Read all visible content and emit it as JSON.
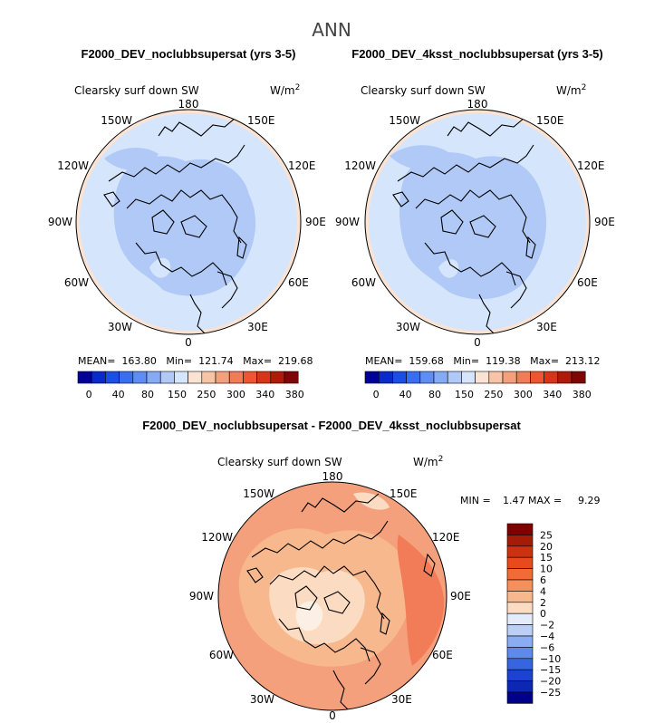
{
  "figure_title": "ANN",
  "panels": [
    {
      "title": "F2000_DEV_noclubbsupersat (yrs 3-5)",
      "variable": "Clearsky surf down SW",
      "units_base": "W/m",
      "units_exp": "2",
      "stats": "MEAN=  163.80   Min=  121.74   Max=  219.68"
    },
    {
      "title": "F2000_DEV_4ksst_noclubbsupersat (yrs 3-5)",
      "variable": "Clearsky surf down SW",
      "units_base": "W/m",
      "units_exp": "2",
      "stats": "MEAN=  159.68   Min=  119.38   Max=  213.12"
    }
  ],
  "diff_panel": {
    "title": "F2000_DEV_noclubbsupersat - F2000_DEV_4ksst_noclubbsupersat",
    "variable": "Clearsky surf down SW",
    "units_base": "W/m",
    "units_exp": "2",
    "min_label": "MIN =",
    "min_value": "1.47",
    "max_label": "MAX =",
    "max_value": "9.29"
  },
  "lon_labels": {
    "lon180": "180",
    "lon150E": "150E",
    "lon120E": "120E",
    "lon90E": "90E",
    "lon60E": "60E",
    "lon30E": "30E",
    "lon0": "0",
    "lon30W": "30W",
    "lon60W": "60W",
    "lon90W": "90W",
    "lon120W": "120W",
    "lon150W": "150W"
  },
  "colorbar_abs": {
    "colors": [
      "#000099",
      "#0a2acc",
      "#1b4ee6",
      "#3a6ef2",
      "#5f8df5",
      "#86abf5",
      "#b0c9f7",
      "#d5e5fb",
      "#fbe3d3",
      "#f7c4a6",
      "#f5a07c",
      "#f27c57",
      "#ee5530",
      "#d83518",
      "#b01a0a",
      "#800606"
    ],
    "labels": [
      "0",
      "40",
      "80",
      "150",
      "250",
      "300",
      "340",
      "380"
    ]
  },
  "colorbar_diff": {
    "colors": [
      "#800000",
      "#a51b08",
      "#cc3210",
      "#e84a1e",
      "#f26a38",
      "#f5905d",
      "#f8b88e",
      "#fbdcc2",
      "#e4ecfb",
      "#bcd0f7",
      "#8aacf2",
      "#5f8aec",
      "#3765e0",
      "#1b43cf",
      "#0b27b3",
      "#00008a"
    ],
    "labels": [
      "25",
      "20",
      "15",
      "10",
      "6",
      "4",
      "2",
      "0",
      "−2",
      "−4",
      "−6",
      "−10",
      "−15",
      "−20",
      "−25"
    ]
  },
  "chart_data": {
    "type": "heatmap",
    "projection": "north polar stereographic",
    "panels": [
      {
        "name": "F2000_DEV_noclubbsupersat (yrs 3-5)",
        "mean": 163.8,
        "min": 121.74,
        "max": 219.68,
        "units": "W/m2"
      },
      {
        "name": "F2000_DEV_4ksst_noclubbsupersat (yrs 3-5)",
        "mean": 159.68,
        "min": 119.38,
        "max": 213.12,
        "units": "W/m2"
      },
      {
        "name": "difference",
        "min": 1.47,
        "max": 9.29,
        "units": "W/m2"
      }
    ]
  }
}
